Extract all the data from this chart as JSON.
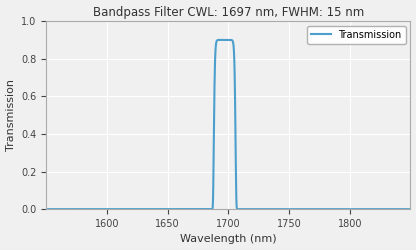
{
  "title": "Bandpass Filter CWL: 1697 nm, FWHM: 15 nm",
  "xlabel": "Wavelength (nm)",
  "ylabel": "Transmission",
  "legend_label": "Transmission",
  "cwl": 1697,
  "fwhm": 15,
  "peak_transmission": 0.9,
  "x_min": 1550,
  "x_max": 1850,
  "y_min": 0.0,
  "y_max": 1.0,
  "x_ticks": [
    1600,
    1650,
    1700,
    1750,
    1800
  ],
  "y_ticks": [
    0.0,
    0.2,
    0.4,
    0.6,
    0.8,
    1.0
  ],
  "line_color": "#4c9fcc",
  "background_color": "#f0f0f0",
  "plot_bg_color": "#f0f0f0",
  "grid_color": "#ffffff",
  "title_fontsize": 8.5,
  "label_fontsize": 8,
  "tick_fontsize": 7,
  "legend_fontsize": 7,
  "line_width": 1.5,
  "super_gaussian_order": 8
}
